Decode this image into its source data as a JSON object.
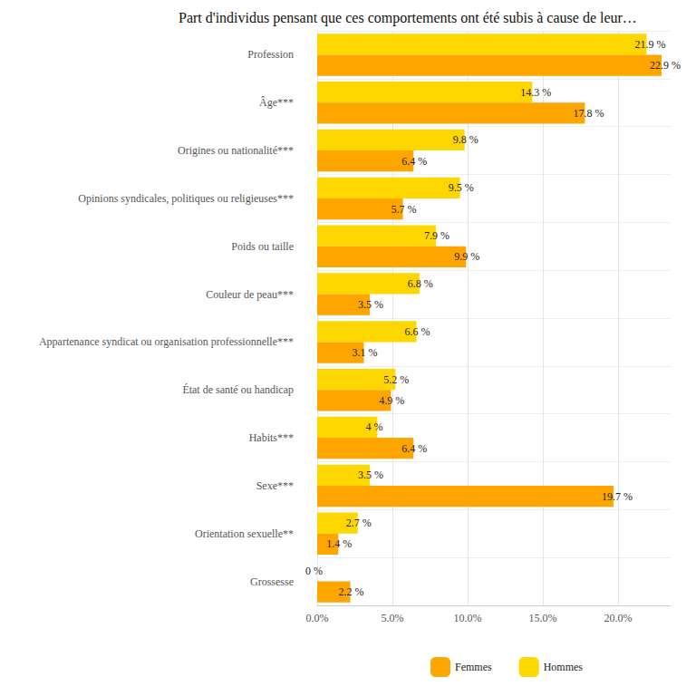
{
  "chart_data": {
    "type": "bar",
    "title": "Part d'individus pensant que ces comportements ont été subis à cause de leur…",
    "orientation": "horizontal",
    "categories": [
      "Profession",
      "Âge***",
      "Origines ou nationalité***",
      "Opinions syndicales, politiques ou religieuses***",
      "Poids ou taille",
      "Couleur de peau***",
      "Appartenance syndicat ou organisation professionnelle***",
      "État de santé ou handicap",
      "Habits***",
      "Sexe***",
      "Orientation sexuelle**",
      "Grossesse"
    ],
    "series": [
      {
        "name": "Hommes",
        "color": "#FFD700",
        "values": [
          21.9,
          14.3,
          9.8,
          9.5,
          7.9,
          6.8,
          6.6,
          5.2,
          4,
          3.5,
          2.7,
          0
        ],
        "value_labels": [
          "21.9 %",
          "14.3 %",
          "9.8 %",
          "9.5 %",
          "7.9 %",
          "6.8 %",
          "6.6 %",
          "5.2 %",
          "4 %",
          "3.5 %",
          "2.7 %",
          "0 %"
        ]
      },
      {
        "name": "Femmes",
        "color": "#FFA500",
        "values": [
          22.9,
          17.8,
          6.4,
          5.7,
          9.9,
          3.5,
          3.1,
          4.9,
          6.4,
          19.7,
          1.4,
          2.2
        ],
        "value_labels": [
          "22.9 %",
          "17.8 %",
          "6.4 %",
          "5.7 %",
          "9.9 %",
          "3.5 %",
          "3.1 %",
          "4.9 %",
          "6.4 %",
          "19.7 %",
          "1.4 %",
          "2.2 %"
        ]
      }
    ],
    "xlim": [
      0,
      23.5
    ],
    "xticks": [
      {
        "value": 0,
        "label": "0.0%"
      },
      {
        "value": 5,
        "label": "5.0%"
      },
      {
        "value": 10,
        "label": "10.0%"
      },
      {
        "value": 15,
        "label": "15.0%"
      },
      {
        "value": 20,
        "label": "20.0%"
      }
    ],
    "grid": true,
    "legend": "bottom",
    "data_labels": true
  }
}
